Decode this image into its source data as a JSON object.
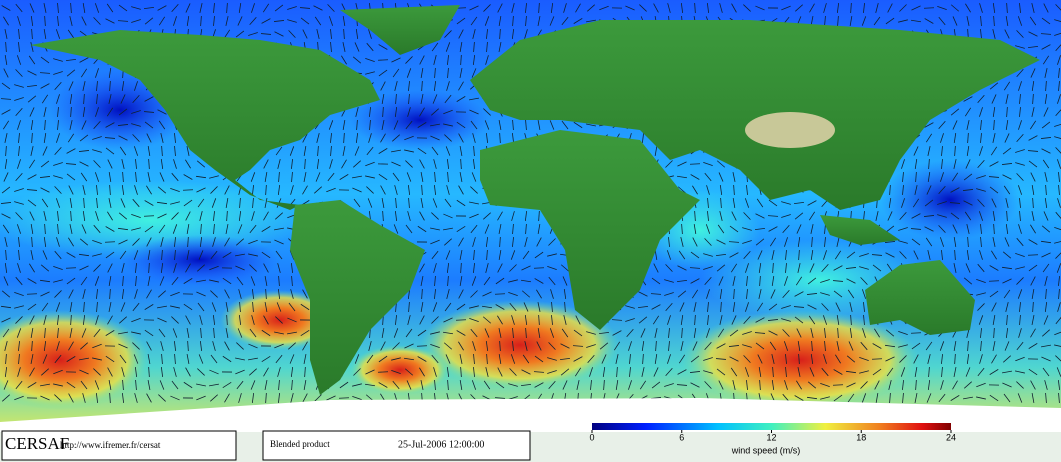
{
  "footer": {
    "logo": "CERSAF",
    "url": "http://www.ifremer.fr/cersat",
    "product": "Blended product",
    "date": "25-Jul-2006 12:00:00"
  },
  "colorbar": {
    "range": [
      0,
      24
    ],
    "ticks": [
      0,
      6,
      12,
      18,
      24
    ],
    "label": "wind speed (m/s)"
  }
}
